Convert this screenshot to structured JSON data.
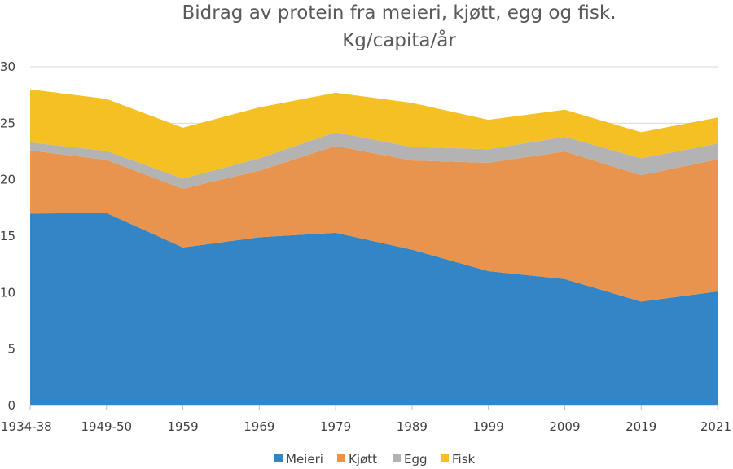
{
  "chart_data": {
    "type": "area",
    "stacked": true,
    "title_lines": [
      "Bidrag av protein fra meieri, kjøtt, egg og fisk.",
      "Kg/capita/år"
    ],
    "categories": [
      "1934-38",
      "1949-50",
      "1959",
      "1969",
      "1979",
      "1989",
      "1999",
      "2009",
      "2019",
      "2021"
    ],
    "ylim": [
      0,
      30
    ],
    "yticks": [
      "0",
      "5",
      "10",
      "15",
      "20",
      "25",
      "30"
    ],
    "grid": true,
    "legend_position": "bottom",
    "series": [
      {
        "name": "Meieri",
        "color": "#3385c6",
        "values": [
          17.0,
          17.05,
          14.0,
          14.9,
          15.3,
          13.8,
          11.9,
          11.2,
          9.2,
          10.1
        ]
      },
      {
        "name": "Kjøtt",
        "color": "#e8944f",
        "values": [
          5.6,
          4.7,
          5.2,
          5.9,
          7.7,
          7.9,
          9.6,
          11.3,
          11.2,
          11.7
        ]
      },
      {
        "name": "Egg",
        "color": "#b3b3b3",
        "values": [
          0.7,
          0.8,
          0.9,
          1.1,
          1.2,
          1.2,
          1.2,
          1.3,
          1.5,
          1.4
        ]
      },
      {
        "name": "Fisk",
        "color": "#f5c023",
        "values": [
          4.7,
          4.6,
          4.5,
          4.5,
          3.5,
          3.9,
          2.6,
          2.4,
          2.3,
          2.3
        ]
      }
    ]
  }
}
